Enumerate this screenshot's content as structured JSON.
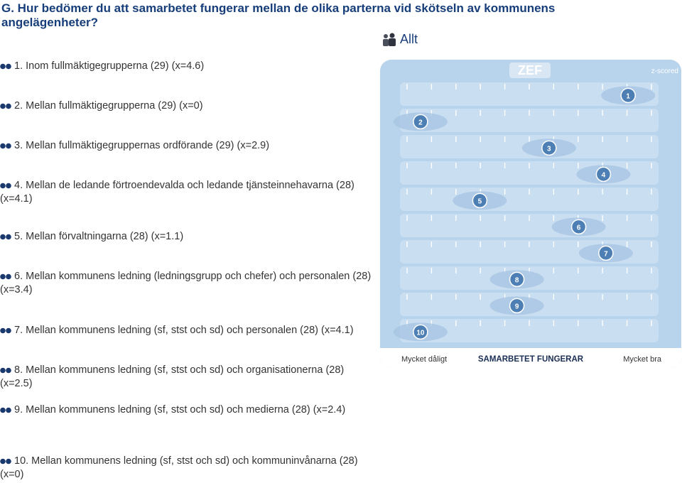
{
  "title": "G. Hur bedömer du att samarbetet fungerar mellan de olika parterna vid skötseln av kommunens angelägenheter?",
  "group_label": "Allt",
  "icons": {
    "group": "group-people-icon",
    "bullet": "double-dot-bullet-icon"
  },
  "colors": {
    "title": "#173e7a",
    "panel": "#b8d3ec",
    "lane": "#d7e7f6",
    "marker": "#4d7fb4",
    "ellipse": "#a5c3e2"
  },
  "chart_data": {
    "type": "scatter",
    "logo": "ZEF",
    "corner_label": "z-scored",
    "x_low_label": "Mycket dåligt",
    "x_mid_label": "SAMARBETET FUNGERAR",
    "x_high_label": "Mycket bra",
    "scale": "z-scored",
    "items": [
      {
        "id": "1",
        "x_pos": 0.9
      },
      {
        "id": "2",
        "x_pos": 0.06
      },
      {
        "id": "3",
        "x_pos": 0.58
      },
      {
        "id": "4",
        "x_pos": 0.8
      },
      {
        "id": "5",
        "x_pos": 0.3
      },
      {
        "id": "6",
        "x_pos": 0.7
      },
      {
        "id": "7",
        "x_pos": 0.81
      },
      {
        "id": "8",
        "x_pos": 0.45
      },
      {
        "id": "9",
        "x_pos": 0.45
      },
      {
        "id": "10",
        "x_pos": 0.06
      }
    ]
  },
  "questions": [
    {
      "text": "1. Inom fullmäktigegrupperna (29) (x=4.6)"
    },
    {
      "text": "2. Mellan fullmäktigegrupperna (29) (x=0)"
    },
    {
      "text": "3. Mellan fullmäktigegruppernas ordförande (29) (x=2.9)"
    },
    {
      "text": "4. Mellan de ledande förtroendevalda och ledande tjänsteinnehavarna (28) (x=4.1)"
    },
    {
      "text": "5. Mellan förvaltningarna (28) (x=1.1)"
    },
    {
      "text": "6. Mellan kommunens ledning (ledningsgrupp och chefer) och personalen (28) (x=3.4)"
    },
    {
      "text": "7. Mellan kommunens ledning (sf, stst och sd) och personalen (28) (x=4.1)"
    },
    {
      "text": "8. Mellan kommunens ledning (sf, stst och sd) och organisationerna (28) (x=2.5)"
    },
    {
      "text": "9. Mellan kommunens ledning (sf, stst och sd) och medierna (28) (x=2.4)"
    },
    {
      "text": "10. Mellan kommunens ledning (sf, stst och sd) och kommuninvånarna (28) (x=0)"
    }
  ]
}
